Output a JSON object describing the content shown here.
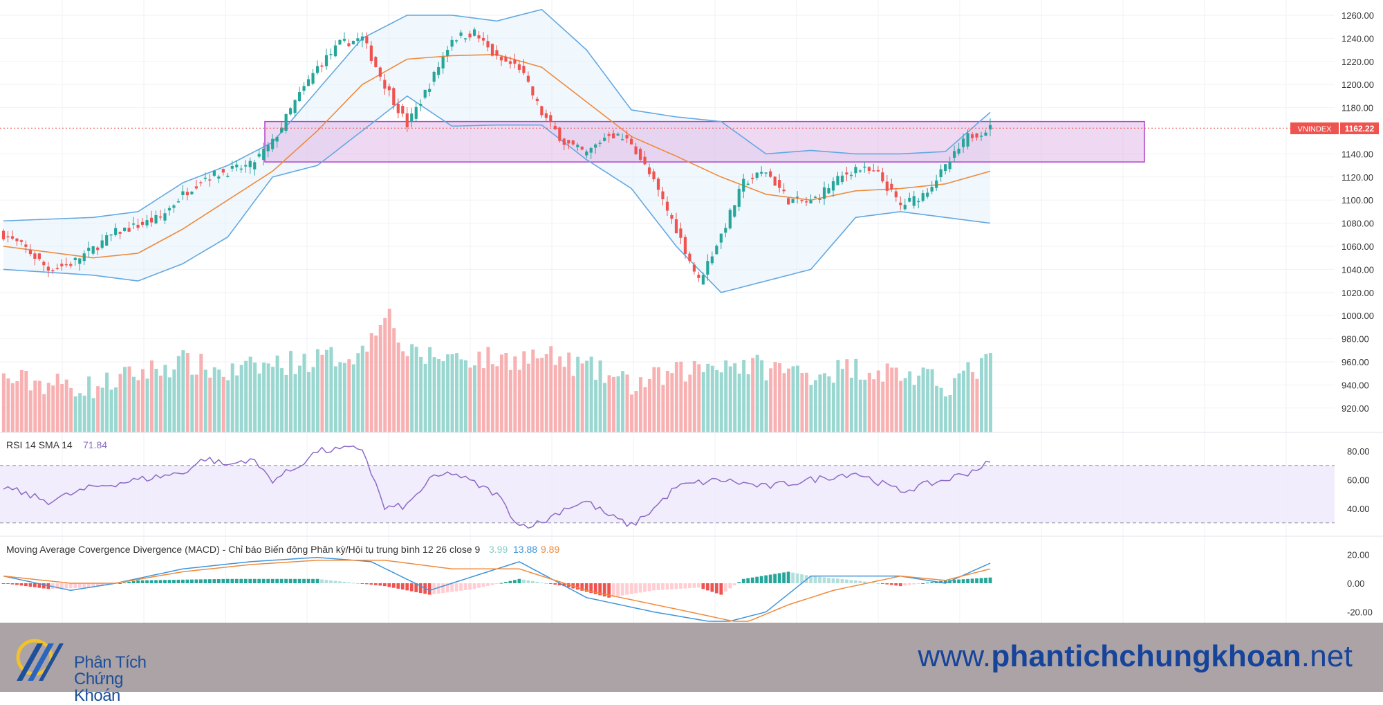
{
  "colors": {
    "up": "#26a69a",
    "down": "#ef5350",
    "ma": "#f08a3a",
    "band": "#64a8e0",
    "zone_fill": "#d9a9e3",
    "zone_stroke": "#b040c8",
    "rsi": "#8c6ac6",
    "macd": "#3f94d8",
    "signal": "#f08a3a"
  },
  "chart_data": {
    "type": "candlestick",
    "symbol": "VNINDEX",
    "last_price": "1162.22",
    "price_axis": {
      "ticks": [
        "1260.00",
        "1240.00",
        "1220.00",
        "1200.00",
        "1180.00",
        "1140.00",
        "1120.00",
        "1100.00",
        "1080.00",
        "1060.00",
        "1040.00",
        "1020.00",
        "1000.00",
        "980.00",
        "960.00",
        "940.00",
        "920.00"
      ],
      "range": [
        904,
        1272
      ]
    },
    "resistance_zone": [
      1133,
      1168
    ],
    "close_path": [
      [
        0,
        1070
      ],
      [
        5,
        1058
      ],
      [
        10,
        1040
      ],
      [
        15,
        1045
      ],
      [
        20,
        1058
      ],
      [
        25,
        1072
      ],
      [
        30,
        1078
      ],
      [
        35,
        1085
      ],
      [
        40,
        1105
      ],
      [
        45,
        1120
      ],
      [
        50,
        1125
      ],
      [
        55,
        1130
      ],
      [
        60,
        1150
      ],
      [
        65,
        1185
      ],
      [
        70,
        1215
      ],
      [
        75,
        1235
      ],
      [
        80,
        1240
      ],
      [
        85,
        1200
      ],
      [
        90,
        1165
      ],
      [
        95,
        1200
      ],
      [
        100,
        1240
      ],
      [
        105,
        1245
      ],
      [
        110,
        1222
      ],
      [
        115,
        1215
      ],
      [
        120,
        1175
      ],
      [
        125,
        1150
      ],
      [
        130,
        1140
      ],
      [
        135,
        1158
      ],
      [
        140,
        1150
      ],
      [
        145,
        1115
      ],
      [
        150,
        1075
      ],
      [
        155,
        1030
      ],
      [
        160,
        1070
      ],
      [
        165,
        1115
      ],
      [
        170,
        1125
      ],
      [
        175,
        1100
      ],
      [
        180,
        1098
      ],
      [
        185,
        1115
      ],
      [
        190,
        1128
      ],
      [
        195,
        1122
      ],
      [
        200,
        1095
      ],
      [
        205,
        1105
      ],
      [
        210,
        1128
      ],
      [
        215,
        1155
      ],
      [
        220,
        1162.22
      ]
    ],
    "ma_path": [
      [
        0,
        1060
      ],
      [
        20,
        1050
      ],
      [
        30,
        1054
      ],
      [
        40,
        1075
      ],
      [
        50,
        1100
      ],
      [
        60,
        1125
      ],
      [
        70,
        1160
      ],
      [
        80,
        1200
      ],
      [
        90,
        1222
      ],
      [
        100,
        1225
      ],
      [
        110,
        1226
      ],
      [
        120,
        1215
      ],
      [
        130,
        1185
      ],
      [
        140,
        1155
      ],
      [
        150,
        1138
      ],
      [
        160,
        1120
      ],
      [
        170,
        1105
      ],
      [
        180,
        1100
      ],
      [
        190,
        1108
      ],
      [
        200,
        1110
      ],
      [
        210,
        1114
      ],
      [
        220,
        1125
      ]
    ],
    "upper_path": [
      [
        0,
        1082
      ],
      [
        20,
        1085
      ],
      [
        30,
        1090
      ],
      [
        40,
        1115
      ],
      [
        50,
        1130
      ],
      [
        60,
        1150
      ],
      [
        70,
        1195
      ],
      [
        80,
        1240
      ],
      [
        90,
        1260
      ],
      [
        100,
        1260
      ],
      [
        110,
        1255
      ],
      [
        120,
        1265
      ],
      [
        130,
        1230
      ],
      [
        140,
        1178
      ],
      [
        150,
        1172
      ],
      [
        160,
        1168
      ],
      [
        170,
        1140
      ],
      [
        180,
        1143
      ],
      [
        190,
        1140
      ],
      [
        200,
        1140
      ],
      [
        210,
        1142
      ],
      [
        220,
        1176
      ]
    ],
    "lower_path": [
      [
        0,
        1040
      ],
      [
        20,
        1035
      ],
      [
        30,
        1030
      ],
      [
        40,
        1045
      ],
      [
        50,
        1068
      ],
      [
        60,
        1120
      ],
      [
        70,
        1130
      ],
      [
        80,
        1160
      ],
      [
        90,
        1190
      ],
      [
        100,
        1164
      ],
      [
        110,
        1165
      ],
      [
        120,
        1165
      ],
      [
        130,
        1135
      ],
      [
        140,
        1110
      ],
      [
        150,
        1060
      ],
      [
        160,
        1020
      ],
      [
        170,
        1030
      ],
      [
        180,
        1040
      ],
      [
        190,
        1085
      ],
      [
        200,
        1090
      ],
      [
        210,
        1085
      ],
      [
        220,
        1080
      ]
    ],
    "volume_path": [
      [
        0,
        945
      ],
      [
        20,
        938
      ],
      [
        30,
        950
      ],
      [
        40,
        960
      ],
      [
        50,
        950
      ],
      [
        60,
        958
      ],
      [
        70,
        962
      ],
      [
        80,
        968
      ],
      [
        85,
        1008
      ],
      [
        90,
        965
      ],
      [
        100,
        965
      ],
      [
        110,
        962
      ],
      [
        120,
        965
      ],
      [
        130,
        955
      ],
      [
        140,
        940
      ],
      [
        150,
        950
      ],
      [
        160,
        960
      ],
      [
        170,
        955
      ],
      [
        180,
        950
      ],
      [
        190,
        955
      ],
      [
        200,
        950
      ],
      [
        210,
        940
      ],
      [
        220,
        960
      ]
    ],
    "rsi": {
      "label": "RSI 14 SMA 14",
      "value": "71.84",
      "ticks": [
        "80.00",
        "60.00",
        "40.00"
      ],
      "bands": [
        30,
        70
      ],
      "path": [
        [
          0,
          55
        ],
        [
          10,
          45
        ],
        [
          20,
          55
        ],
        [
          30,
          60
        ],
        [
          40,
          65
        ],
        [
          45,
          75
        ],
        [
          50,
          70
        ],
        [
          55,
          75
        ],
        [
          60,
          60
        ],
        [
          65,
          68
        ],
        [
          70,
          80
        ],
        [
          80,
          82
        ],
        [
          85,
          40
        ],
        [
          90,
          42
        ],
        [
          95,
          60
        ],
        [
          100,
          65
        ],
        [
          110,
          50
        ],
        [
          115,
          28
        ],
        [
          120,
          30
        ],
        [
          125,
          40
        ],
        [
          130,
          45
        ],
        [
          135,
          35
        ],
        [
          140,
          28
        ],
        [
          145,
          40
        ],
        [
          150,
          55
        ],
        [
          155,
          58
        ],
        [
          160,
          60
        ],
        [
          170,
          55
        ],
        [
          180,
          60
        ],
        [
          190,
          65
        ],
        [
          200,
          52
        ],
        [
          210,
          60
        ],
        [
          215,
          65
        ],
        [
          220,
          72
        ]
      ]
    },
    "macd": {
      "label": "Moving Average Covergence Divergence (MACD) - Chỉ báo Biến động Phân kỳ/Hội tụ trung bình 12 26 close 9",
      "values": [
        "3.99",
        "13.88",
        "9.89"
      ],
      "ticks": [
        "20.00",
        "0.00",
        "-20.00"
      ],
      "macd_path": [
        [
          0,
          5
        ],
        [
          15,
          -5
        ],
        [
          25,
          0
        ],
        [
          40,
          10
        ],
        [
          55,
          15
        ],
        [
          70,
          18
        ],
        [
          82,
          15
        ],
        [
          95,
          -5
        ],
        [
          115,
          15
        ],
        [
          130,
          -10
        ],
        [
          145,
          -20
        ],
        [
          160,
          -28
        ],
        [
          170,
          -20
        ],
        [
          180,
          5
        ],
        [
          200,
          5
        ],
        [
          210,
          0
        ],
        [
          220,
          14
        ]
      ],
      "signal_path": [
        [
          0,
          5
        ],
        [
          15,
          0
        ],
        [
          25,
          0
        ],
        [
          40,
          8
        ],
        [
          55,
          13
        ],
        [
          70,
          16
        ],
        [
          85,
          16
        ],
        [
          100,
          10
        ],
        [
          115,
          10
        ],
        [
          130,
          -5
        ],
        [
          150,
          -18
        ],
        [
          165,
          -28
        ],
        [
          175,
          -15
        ],
        [
          185,
          -5
        ],
        [
          200,
          5
        ],
        [
          210,
          2
        ],
        [
          220,
          10
        ]
      ],
      "hist_path": [
        [
          0,
          0
        ],
        [
          10,
          -4
        ],
        [
          20,
          -3
        ],
        [
          30,
          2
        ],
        [
          50,
          3
        ],
        [
          70,
          3
        ],
        [
          85,
          -2
        ],
        [
          95,
          -8
        ],
        [
          105,
          -4
        ],
        [
          115,
          3
        ],
        [
          125,
          -2
        ],
        [
          135,
          -10
        ],
        [
          145,
          -5
        ],
        [
          155,
          -3
        ],
        [
          160,
          -8
        ],
        [
          165,
          3
        ],
        [
          175,
          8
        ],
        [
          180,
          5
        ],
        [
          190,
          2
        ],
        [
          200,
          -2
        ],
        [
          210,
          2
        ],
        [
          220,
          4
        ]
      ]
    }
  },
  "footer": {
    "logo_line1": "Phân Tích",
    "logo_line2": "Chứng Khoán",
    "url_prefix": "www.",
    "url_domain": "phantichchungkhoan",
    "url_suffix": ".net"
  }
}
